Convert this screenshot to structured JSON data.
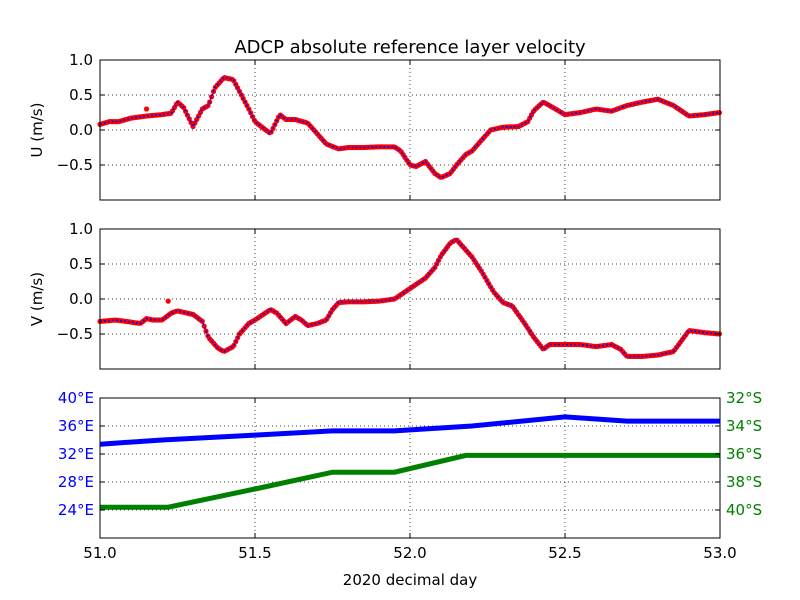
{
  "title": "ADCP absolute reference layer velocity",
  "xlabel": "2020 decimal day",
  "colors": {
    "u_line": "#0000ff",
    "u_points": "#ff0000",
    "lon": "#0000ff",
    "lat": "#008000",
    "axes": "#000000"
  },
  "chart_data": [
    {
      "type": "line",
      "panel": "U",
      "ylabel": "U (m/s)",
      "xlim": [
        51.0,
        53.0
      ],
      "ylim": [
        -1.0,
        1.0
      ],
      "yticks": [
        "1.0",
        "0.5",
        "0.0",
        "−0.5"
      ],
      "ytick_values": [
        1.0,
        0.5,
        0.0,
        -0.5
      ],
      "grid": true,
      "x": [
        51.0,
        51.03,
        51.06,
        51.1,
        51.15,
        51.2,
        51.23,
        51.25,
        51.27,
        51.3,
        51.33,
        51.35,
        51.37,
        51.4,
        51.43,
        51.45,
        51.48,
        51.5,
        51.52,
        51.55,
        51.58,
        51.6,
        51.63,
        51.67,
        51.7,
        51.73,
        51.77,
        51.8,
        51.85,
        51.9,
        51.95,
        51.97,
        52.0,
        52.02,
        52.05,
        52.08,
        52.1,
        52.13,
        52.15,
        52.18,
        52.2,
        52.23,
        52.26,
        52.3,
        52.35,
        52.38,
        52.4,
        52.43,
        52.45,
        52.5,
        52.55,
        52.6,
        52.65,
        52.7,
        52.75,
        52.8,
        52.85,
        52.9,
        52.95,
        53.0
      ],
      "values": [
        0.08,
        0.12,
        0.12,
        0.17,
        0.2,
        0.22,
        0.24,
        0.4,
        0.32,
        0.05,
        0.3,
        0.35,
        0.6,
        0.75,
        0.72,
        0.55,
        0.3,
        0.12,
        0.05,
        -0.05,
        0.22,
        0.15,
        0.15,
        0.1,
        -0.05,
        -0.2,
        -0.27,
        -0.25,
        -0.25,
        -0.24,
        -0.24,
        -0.3,
        -0.5,
        -0.52,
        -0.45,
        -0.62,
        -0.68,
        -0.62,
        -0.5,
        -0.35,
        -0.3,
        -0.15,
        0.0,
        0.04,
        0.05,
        0.12,
        0.28,
        0.4,
        0.35,
        0.22,
        0.25,
        0.3,
        0.27,
        0.35,
        0.4,
        0.44,
        0.35,
        0.2,
        0.22,
        0.25
      ],
      "outliers": [
        [
          51.15,
          0.3
        ]
      ]
    },
    {
      "type": "line",
      "panel": "V",
      "ylabel": "V (m/s)",
      "xlim": [
        51.0,
        53.0
      ],
      "ylim": [
        -1.0,
        1.0
      ],
      "yticks": [
        "1.0",
        "0.5",
        "0.0",
        "−0.5"
      ],
      "ytick_values": [
        1.0,
        0.5,
        0.0,
        -0.5
      ],
      "grid": true,
      "x": [
        51.0,
        51.05,
        51.1,
        51.13,
        51.15,
        51.17,
        51.2,
        51.23,
        51.25,
        51.28,
        51.3,
        51.33,
        51.35,
        51.38,
        51.4,
        51.43,
        51.45,
        51.48,
        51.5,
        51.55,
        51.57,
        51.6,
        51.63,
        51.65,
        51.67,
        51.7,
        51.73,
        51.75,
        51.77,
        51.8,
        51.85,
        51.9,
        51.95,
        52.0,
        52.05,
        52.08,
        52.1,
        52.13,
        52.15,
        52.17,
        52.2,
        52.23,
        52.27,
        52.3,
        52.33,
        52.37,
        52.4,
        52.43,
        52.45,
        52.5,
        52.55,
        52.6,
        52.65,
        52.68,
        52.7,
        52.75,
        52.8,
        52.85,
        52.9,
        52.95,
        53.0
      ],
      "values": [
        -0.32,
        -0.3,
        -0.33,
        -0.35,
        -0.28,
        -0.3,
        -0.3,
        -0.2,
        -0.17,
        -0.2,
        -0.22,
        -0.32,
        -0.55,
        -0.7,
        -0.75,
        -0.68,
        -0.5,
        -0.35,
        -0.3,
        -0.15,
        -0.2,
        -0.35,
        -0.25,
        -0.3,
        -0.38,
        -0.35,
        -0.3,
        -0.15,
        -0.05,
        -0.04,
        -0.04,
        -0.03,
        0.0,
        0.15,
        0.3,
        0.45,
        0.62,
        0.8,
        0.85,
        0.75,
        0.6,
        0.4,
        0.1,
        -0.05,
        -0.1,
        -0.35,
        -0.55,
        -0.72,
        -0.65,
        -0.65,
        -0.65,
        -0.68,
        -0.65,
        -0.72,
        -0.82,
        -0.82,
        -0.8,
        -0.75,
        -0.45,
        -0.48,
        -0.5
      ],
      "outliers": [
        [
          51.22,
          -0.03
        ]
      ]
    },
    {
      "type": "line",
      "panel": "position",
      "xlim": [
        51.0,
        53.0
      ],
      "xticks": [
        "51.0",
        "51.5",
        "52.0",
        "52.5",
        "53.0"
      ],
      "xtick_values": [
        51.0,
        51.5,
        52.0,
        52.5,
        53.0
      ],
      "grid": true,
      "left_axis": {
        "ylim": [
          20,
          40
        ],
        "yticks": [
          "40°E",
          "36°E",
          "32°E",
          "28°E",
          "24°E"
        ],
        "ytick_values": [
          40,
          36,
          32,
          28,
          24
        ]
      },
      "right_axis": {
        "ylim": [
          -42,
          -32
        ],
        "yticks": [
          "32°S",
          "34°S",
          "36°S",
          "38°S",
          "40°S"
        ],
        "ytick_values": [
          -32,
          -34,
          -36,
          -38,
          -40
        ]
      },
      "series": [
        {
          "axis": "left",
          "x": [
            51.0,
            51.2,
            51.5,
            51.75,
            51.95,
            52.2,
            52.5,
            52.7,
            53.0
          ],
          "values": [
            33.4,
            34.0,
            34.7,
            35.3,
            35.3,
            36.0,
            37.3,
            36.7,
            36.7
          ]
        },
        {
          "axis": "right",
          "x": [
            51.0,
            51.22,
            51.5,
            51.75,
            51.95,
            52.18,
            52.5,
            53.0
          ],
          "values": [
            -39.8,
            -39.8,
            -38.5,
            -37.3,
            -37.3,
            -36.1,
            -36.1,
            -36.1
          ]
        }
      ]
    }
  ]
}
